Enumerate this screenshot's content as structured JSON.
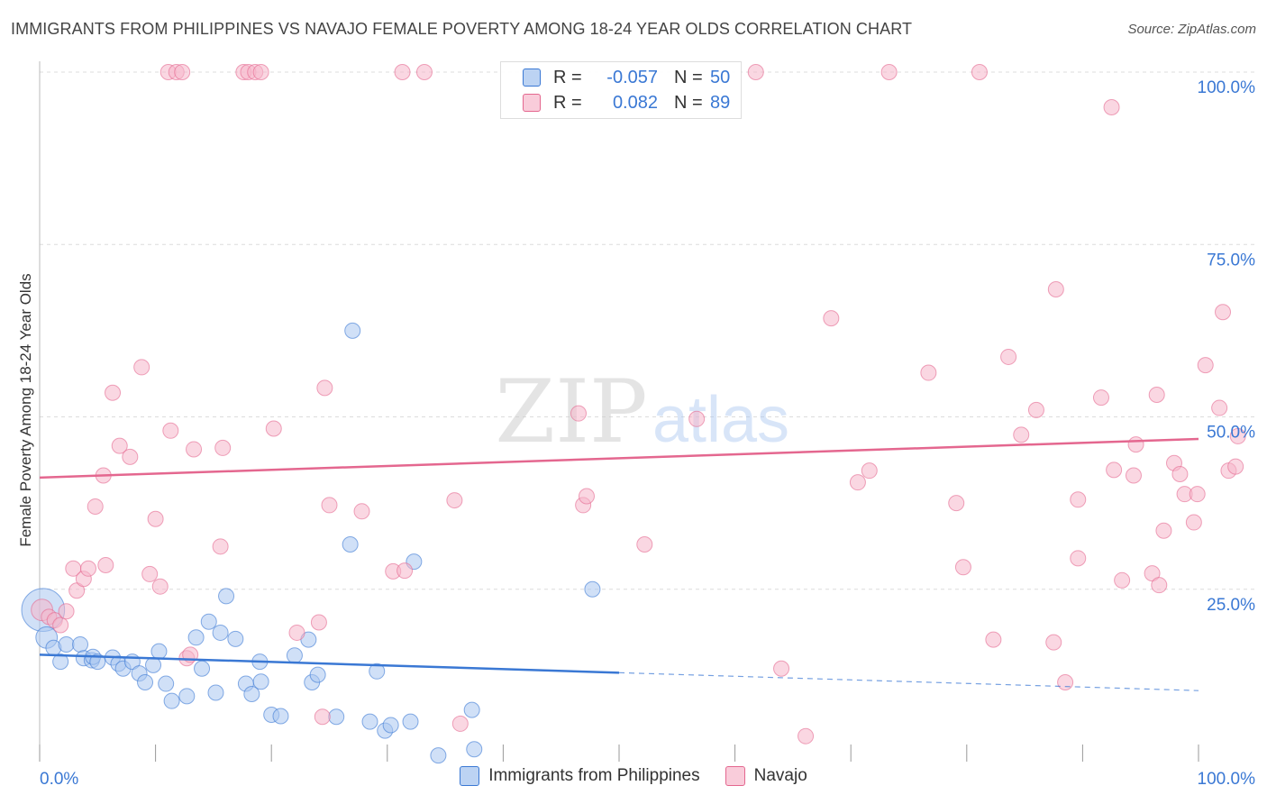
{
  "header": {
    "title": "IMMIGRANTS FROM PHILIPPINES VS NAVAJO FEMALE POVERTY AMONG 18-24 YEAR OLDS CORRELATION CHART",
    "source": "Source: ZipAtlas.com"
  },
  "watermark": {
    "zip": "ZIP",
    "atlas": "atlas"
  },
  "colors": {
    "blue": "#3a78d4",
    "blue_fill": "#a9c7f0",
    "pink": "#e4678f",
    "pink_fill": "#f6b6ca",
    "tick_text": "#3a78d4",
    "grid": "#dcdcdc"
  },
  "legend": {
    "series1": {
      "r_label": "R =",
      "r_value": "-0.057",
      "n_label": "N =",
      "n_value": "50"
    },
    "series2": {
      "r_label": "R =",
      "r_value": "0.082",
      "n_label": "N =",
      "n_value": "89"
    }
  },
  "bottom_legend": {
    "series1": "Immigrants from Philippines",
    "series2": "Navajo"
  },
  "chart_data": {
    "type": "scatter",
    "title": "IMMIGRANTS FROM PHILIPPINES VS NAVAJO FEMALE POVERTY AMONG 18-24 YEAR OLDS CORRELATION CHART",
    "xlabel": "",
    "ylabel": "Female Poverty Among 18-24 Year Olds",
    "xlim": [
      0,
      100
    ],
    "ylim": [
      0,
      100
    ],
    "x_tick_labels": [
      "0.0%",
      "100.0%"
    ],
    "y_ticks": [
      25,
      50,
      75,
      100
    ],
    "y_tick_labels": [
      "25.0%",
      "50.0%",
      "75.0%",
      "100.0%"
    ],
    "grid": true,
    "series": [
      {
        "name": "Immigrants from Philippines",
        "color": "#3a78d4",
        "trend": {
          "x0": 0,
          "y0": 15.5,
          "x1": 100,
          "y1": 10.3,
          "solid_until": 50
        },
        "points": [
          [
            0.3,
            22,
            28
          ],
          [
            0.6,
            18,
            14
          ],
          [
            1.2,
            16.5,
            10
          ],
          [
            1.8,
            14.5,
            10
          ],
          [
            2.3,
            17,
            10
          ],
          [
            3.5,
            17,
            10
          ],
          [
            3.8,
            15,
            10
          ],
          [
            4.5,
            14.7,
            10
          ],
          [
            4.6,
            15.2,
            10
          ],
          [
            5.0,
            14.5,
            10
          ],
          [
            6.3,
            15.1,
            10
          ],
          [
            6.8,
            14.2,
            10
          ],
          [
            7.2,
            13.5,
            10
          ],
          [
            8.0,
            14.5,
            10
          ],
          [
            8.6,
            12.8,
            10
          ],
          [
            9.1,
            11.5,
            10
          ],
          [
            9.8,
            14,
            10
          ],
          [
            10.3,
            16,
            10
          ],
          [
            10.9,
            11.3,
            10
          ],
          [
            11.4,
            8.8,
            10
          ],
          [
            12.7,
            9.5,
            10
          ],
          [
            13.5,
            18,
            10
          ],
          [
            14.0,
            13.5,
            10
          ],
          [
            14.6,
            20.3,
            10
          ],
          [
            15.2,
            10,
            10
          ],
          [
            15.6,
            18.7,
            10
          ],
          [
            16.1,
            24,
            10
          ],
          [
            16.9,
            17.8,
            10
          ],
          [
            17.8,
            11.3,
            10
          ],
          [
            18.3,
            9.8,
            10
          ],
          [
            19.0,
            14.5,
            10
          ],
          [
            19.1,
            11.6,
            10
          ],
          [
            20.0,
            6.8,
            10
          ],
          [
            20.8,
            6.6,
            10
          ],
          [
            22.0,
            15.4,
            10
          ],
          [
            23.2,
            17.7,
            10
          ],
          [
            23.5,
            11.5,
            10
          ],
          [
            24.0,
            12.6,
            10
          ],
          [
            25.6,
            6.5,
            10
          ],
          [
            26.8,
            31.5,
            10
          ],
          [
            27.0,
            62.5,
            10
          ],
          [
            28.5,
            5.8,
            10
          ],
          [
            29.1,
            13.1,
            10
          ],
          [
            29.8,
            4.5,
            10
          ],
          [
            30.3,
            5.3,
            10
          ],
          [
            32.0,
            5.8,
            10
          ],
          [
            32.3,
            29,
            10
          ],
          [
            34.4,
            0.9,
            10
          ],
          [
            37.3,
            7.5,
            10
          ],
          [
            37.5,
            1.8,
            10
          ],
          [
            47.7,
            25,
            10
          ]
        ]
      },
      {
        "name": "Navajo",
        "color": "#e4678f",
        "trend": {
          "x0": 0,
          "y0": 41.2,
          "x1": 100,
          "y1": 46.8,
          "solid_until": 100
        },
        "points": [
          [
            0.2,
            22,
            14
          ],
          [
            0.8,
            21,
            10
          ],
          [
            1.3,
            20.5,
            10
          ],
          [
            1.8,
            19.8,
            10
          ],
          [
            2.3,
            21.8,
            10
          ],
          [
            2.9,
            28,
            10
          ],
          [
            3.2,
            24.8,
            10
          ],
          [
            3.8,
            26.5,
            10
          ],
          [
            4.2,
            28,
            10
          ],
          [
            4.8,
            37,
            10
          ],
          [
            5.5,
            41.5,
            10
          ],
          [
            5.7,
            28.5,
            10
          ],
          [
            6.3,
            53.5,
            10
          ],
          [
            6.9,
            45.8,
            10
          ],
          [
            7.8,
            44.2,
            10
          ],
          [
            8.8,
            57.2,
            10
          ],
          [
            9.5,
            27.2,
            10
          ],
          [
            10.0,
            35.2,
            10
          ],
          [
            10.4,
            25.4,
            10
          ],
          [
            11.1,
            100,
            10
          ],
          [
            11.3,
            48,
            10
          ],
          [
            11.8,
            100,
            10
          ],
          [
            12.3,
            100,
            10
          ],
          [
            12.7,
            15,
            10
          ],
          [
            13.0,
            15.5,
            10
          ],
          [
            13.3,
            45.3,
            10
          ],
          [
            15.8,
            45.5,
            10
          ],
          [
            15.6,
            31.2,
            10
          ],
          [
            17.6,
            100,
            10
          ],
          [
            18.0,
            100,
            10
          ],
          [
            18.6,
            100,
            10
          ],
          [
            19.1,
            100,
            10
          ],
          [
            20.2,
            48.3,
            10
          ],
          [
            22.2,
            18.7,
            10
          ],
          [
            24.1,
            20.2,
            10
          ],
          [
            24.4,
            6.5,
            10
          ],
          [
            24.6,
            54.2,
            10
          ],
          [
            25.0,
            37.2,
            10
          ],
          [
            27.8,
            36.3,
            10
          ],
          [
            30.5,
            27.6,
            10
          ],
          [
            31.5,
            27.7,
            10
          ],
          [
            31.3,
            100,
            10
          ],
          [
            33.2,
            100,
            10
          ],
          [
            35.8,
            37.9,
            10
          ],
          [
            36.3,
            5.5,
            10
          ],
          [
            46.5,
            50.5,
            10
          ],
          [
            46.9,
            37.2,
            10
          ],
          [
            47.2,
            38.5,
            10
          ],
          [
            52.2,
            31.5,
            10
          ],
          [
            56.7,
            49.7,
            10
          ],
          [
            61.8,
            100,
            10
          ],
          [
            64.0,
            13.5,
            10
          ],
          [
            66.1,
            3.7,
            10
          ],
          [
            68.3,
            64.3,
            10
          ],
          [
            70.6,
            40.5,
            10
          ],
          [
            71.6,
            42.2,
            10
          ],
          [
            73.3,
            100,
            10
          ],
          [
            76.7,
            56.4,
            10
          ],
          [
            79.1,
            37.5,
            10
          ],
          [
            79.7,
            28.2,
            10
          ],
          [
            81.1,
            100,
            10
          ],
          [
            82.3,
            17.7,
            10
          ],
          [
            83.6,
            58.7,
            10
          ],
          [
            84.7,
            47.4,
            10
          ],
          [
            86.0,
            51,
            10
          ],
          [
            87.5,
            17.3,
            10
          ],
          [
            87.7,
            68.5,
            10
          ],
          [
            88.5,
            11.5,
            10
          ],
          [
            89.6,
            29.5,
            10
          ],
          [
            89.6,
            38,
            10
          ],
          [
            91.6,
            52.8,
            10
          ],
          [
            92.5,
            94.9,
            10
          ],
          [
            92.7,
            42.3,
            10
          ],
          [
            93.4,
            26.3,
            10
          ],
          [
            94.4,
            41.5,
            10
          ],
          [
            94.6,
            46,
            10
          ],
          [
            96.0,
            27.3,
            10
          ],
          [
            96.4,
            53.2,
            10
          ],
          [
            96.6,
            25.6,
            10
          ],
          [
            97.0,
            33.5,
            10
          ],
          [
            97.9,
            43.3,
            10
          ],
          [
            98.4,
            41.7,
            10
          ],
          [
            98.8,
            38.8,
            10
          ],
          [
            99.6,
            34.7,
            10
          ],
          [
            99.9,
            38.8,
            10
          ],
          [
            100.6,
            57.5,
            10
          ],
          [
            101.8,
            51.3,
            10
          ],
          [
            102.1,
            65.2,
            10
          ],
          [
            102.6,
            42.2,
            10
          ],
          [
            103.2,
            42.8,
            10
          ],
          [
            103.4,
            47.2,
            10
          ]
        ]
      }
    ]
  }
}
